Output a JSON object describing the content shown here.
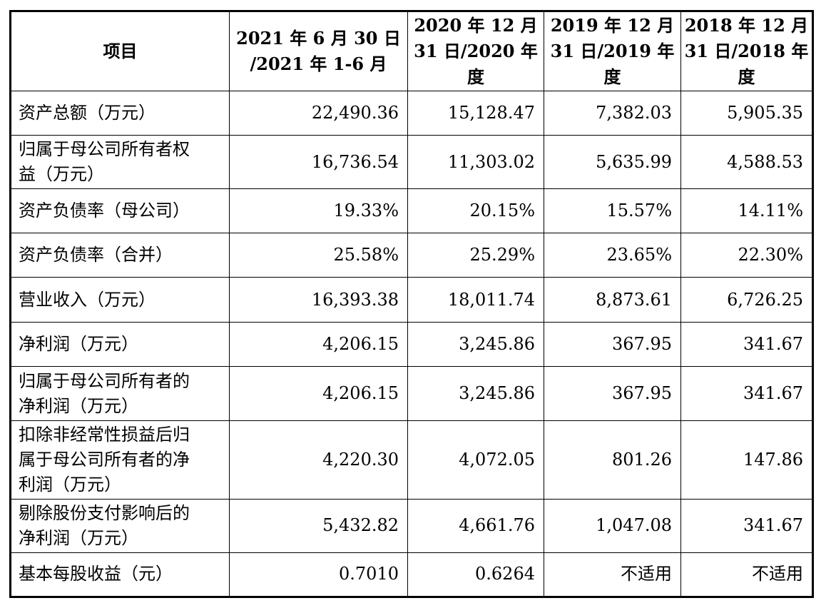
{
  "headers": [
    "项目",
    "2021 年 6 月 30 日\n/2021 年 1-6 月",
    "2020 年 12 月\n31 日/2020 年\n度",
    "2019 年 12 月\n31 日/2019 年\n度",
    "2018 年 12 月\n31 日/2018 年\n度"
  ],
  "rows": [
    {
      "label": "资产总额（万元）",
      "values": [
        "22,490.36",
        "15,128.47",
        "7,382.03",
        "5,905.35"
      ]
    },
    {
      "label": "归属于母公司所有者权\n益（万元）",
      "values": [
        "16,736.54",
        "11,303.02",
        "5,635.99",
        "4,588.53"
      ]
    },
    {
      "label": "资产负债率（母公司）",
      "values": [
        "19.33%",
        "20.15%",
        "15.57%",
        "14.11%"
      ]
    },
    {
      "label": "资产负债率（合并）",
      "values": [
        "25.58%",
        "25.29%",
        "23.65%",
        "22.30%"
      ]
    },
    {
      "label": "营业收入（万元）",
      "values": [
        "16,393.38",
        "18,011.74",
        "8,873.61",
        "6,726.25"
      ]
    },
    {
      "label": "净利润（万元）",
      "values": [
        "4,206.15",
        "3,245.86",
        "367.95",
        "341.67"
      ]
    },
    {
      "label": "归属于母公司所有者的\n净利润（万元）",
      "values": [
        "4,206.15",
        "3,245.86",
        "367.95",
        "341.67"
      ]
    },
    {
      "label": "扣除非经常性损益后归\n属于母公司所有者的净\n利润（万元）",
      "values": [
        "4,220.30",
        "4,072.05",
        "801.26",
        "147.86"
      ]
    },
    {
      "label": "剔除股份支付影响后的\n净利润（万元）",
      "values": [
        "5,432.82",
        "4,661.76",
        "1,047.08",
        "341.67"
      ]
    },
    {
      "label": "基本每股收益（元）",
      "values": [
        "0.7010",
        "0.6264",
        "不适用",
        "不适用"
      ]
    }
  ]
}
